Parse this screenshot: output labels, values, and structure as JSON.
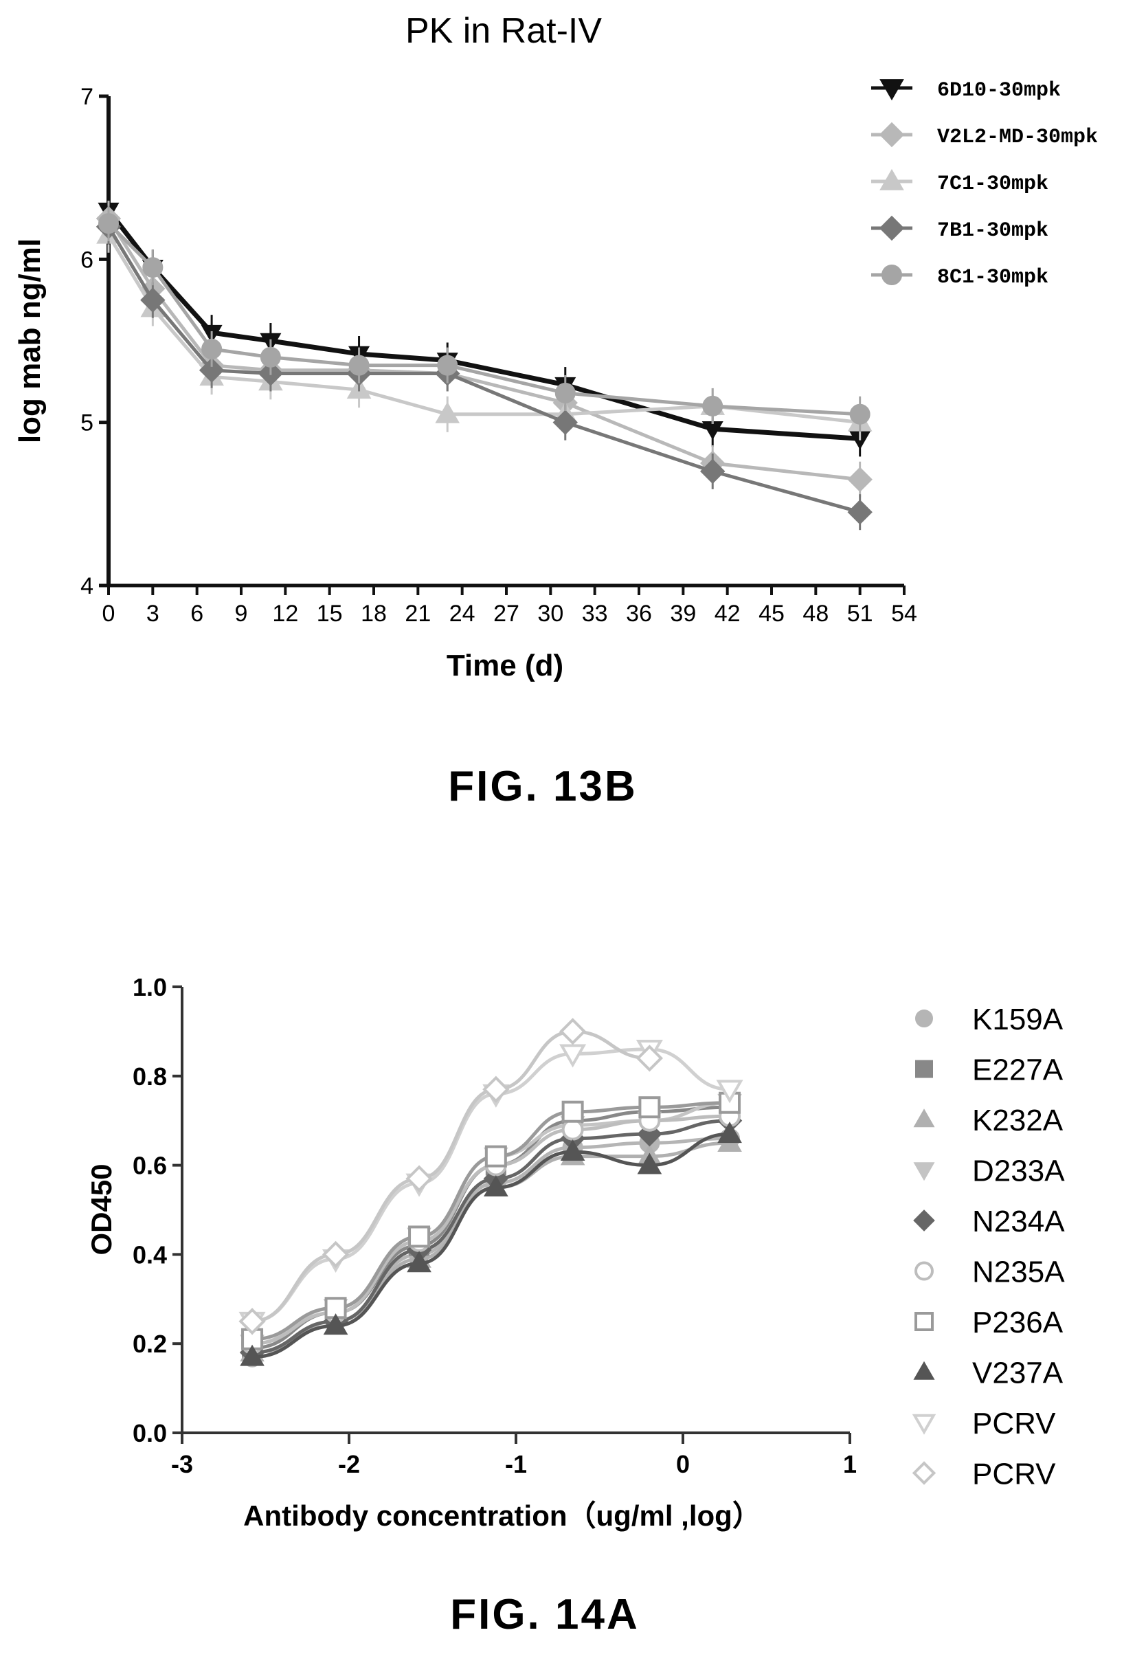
{
  "figures": [
    {
      "caption": "FIG. 13B",
      "chart_data": {
        "type": "line",
        "title": "PK in Rat-IV",
        "xlabel": "Time (d)",
        "ylabel": "log mab ng/ml",
        "xlim": [
          0,
          54
        ],
        "ylim": [
          4,
          7
        ],
        "xticks": [
          "0",
          "3",
          "6",
          "9",
          "12",
          "15",
          "18",
          "21",
          "24",
          "27",
          "30",
          "33",
          "36",
          "39",
          "42",
          "45",
          "48",
          "51",
          "54"
        ],
        "yticks": [
          "4",
          "5",
          "6",
          "7"
        ],
        "x": [
          0,
          3,
          7,
          11,
          17,
          23,
          31,
          41,
          51
        ],
        "legend_position": "top-right",
        "series": [
          {
            "name": "6D10-30mpk",
            "color": "#111111",
            "marker": "triangle-down",
            "values": [
              6.3,
              5.95,
              5.55,
              5.5,
              5.42,
              5.38,
              5.23,
              4.96,
              4.9
            ]
          },
          {
            "name": "V2L2-MD-30mpk",
            "color": "#b8b8b8",
            "marker": "diamond",
            "values": [
              6.25,
              5.82,
              5.35,
              5.32,
              5.32,
              5.3,
              5.12,
              4.75,
              4.65
            ]
          },
          {
            "name": "7C1-30mpk",
            "color": "#c8c8c8",
            "marker": "triangle-up",
            "values": [
              6.15,
              5.7,
              5.28,
              5.25,
              5.2,
              5.05,
              5.05,
              5.1,
              5.0
            ]
          },
          {
            "name": "7B1-30mpk",
            "color": "#777777",
            "marker": "diamond",
            "values": [
              6.2,
              5.75,
              5.32,
              5.3,
              5.3,
              5.3,
              5.0,
              4.7,
              4.45
            ]
          },
          {
            "name": "8C1-30mpk",
            "color": "#a5a5a5",
            "marker": "circle",
            "values": [
              6.22,
              5.95,
              5.45,
              5.4,
              5.35,
              5.35,
              5.18,
              5.1,
              5.05
            ]
          }
        ]
      }
    },
    {
      "caption": "FIG. 14A",
      "chart_data": {
        "type": "line",
        "title": "",
        "xlabel": "Antibody concentration（ug/ml ,log）",
        "ylabel": "OD450",
        "xlim": [
          -3,
          1
        ],
        "ylim": [
          0.0,
          1.0
        ],
        "xticks": [
          "-3",
          "-2",
          "-1",
          "0",
          "1"
        ],
        "yticks": [
          "0.0",
          "0.2",
          "0.4",
          "0.6",
          "0.8",
          "1.0"
        ],
        "x": [
          -2.58,
          -2.08,
          -1.58,
          -1.12,
          -0.66,
          -0.2,
          0.28
        ],
        "legend_position": "right",
        "series": [
          {
            "name": "K159A",
            "color": "#b5b5b5",
            "marker": "circle",
            "values": [
              0.17,
              0.25,
              0.4,
              0.56,
              0.64,
              0.65,
              0.66
            ]
          },
          {
            "name": "E227A",
            "color": "#888888",
            "marker": "square",
            "values": [
              0.19,
              0.27,
              0.42,
              0.6,
              0.7,
              0.72,
              0.73
            ]
          },
          {
            "name": "K232A",
            "color": "#b0b0b0",
            "marker": "triangle-up",
            "values": [
              0.18,
              0.24,
              0.39,
              0.55,
              0.62,
              0.62,
              0.65
            ]
          },
          {
            "name": "D233A",
            "color": "#c4c4c4",
            "marker": "triangle-down",
            "values": [
              0.2,
              0.28,
              0.44,
              0.62,
              0.69,
              0.7,
              0.74
            ]
          },
          {
            "name": "N234A",
            "color": "#666666",
            "marker": "diamond",
            "values": [
              0.18,
              0.25,
              0.41,
              0.57,
              0.66,
              0.67,
              0.7
            ]
          },
          {
            "name": "N235A",
            "color": "#bdbdbd",
            "marker": "circle-open",
            "values": [
              0.2,
              0.27,
              0.43,
              0.6,
              0.68,
              0.7,
              0.71
            ]
          },
          {
            "name": "P236A",
            "color": "#9a9a9a",
            "marker": "square-open",
            "values": [
              0.21,
              0.28,
              0.44,
              0.62,
              0.72,
              0.73,
              0.74
            ]
          },
          {
            "name": "V237A",
            "color": "#555555",
            "marker": "triangle-up",
            "values": [
              0.17,
              0.24,
              0.38,
              0.55,
              0.63,
              0.6,
              0.67
            ]
          },
          {
            "name": "PCRV",
            "color": "#d0d0d0",
            "marker": "triangle-down-open",
            "values": [
              0.25,
              0.39,
              0.56,
              0.76,
              0.85,
              0.86,
              0.77
            ]
          },
          {
            "name": "PCRV",
            "color": "#c6c6c6",
            "marker": "diamond-open",
            "values": [
              0.25,
              0.4,
              0.57,
              0.77,
              0.9,
              0.84,
              null
            ]
          }
        ]
      }
    }
  ]
}
